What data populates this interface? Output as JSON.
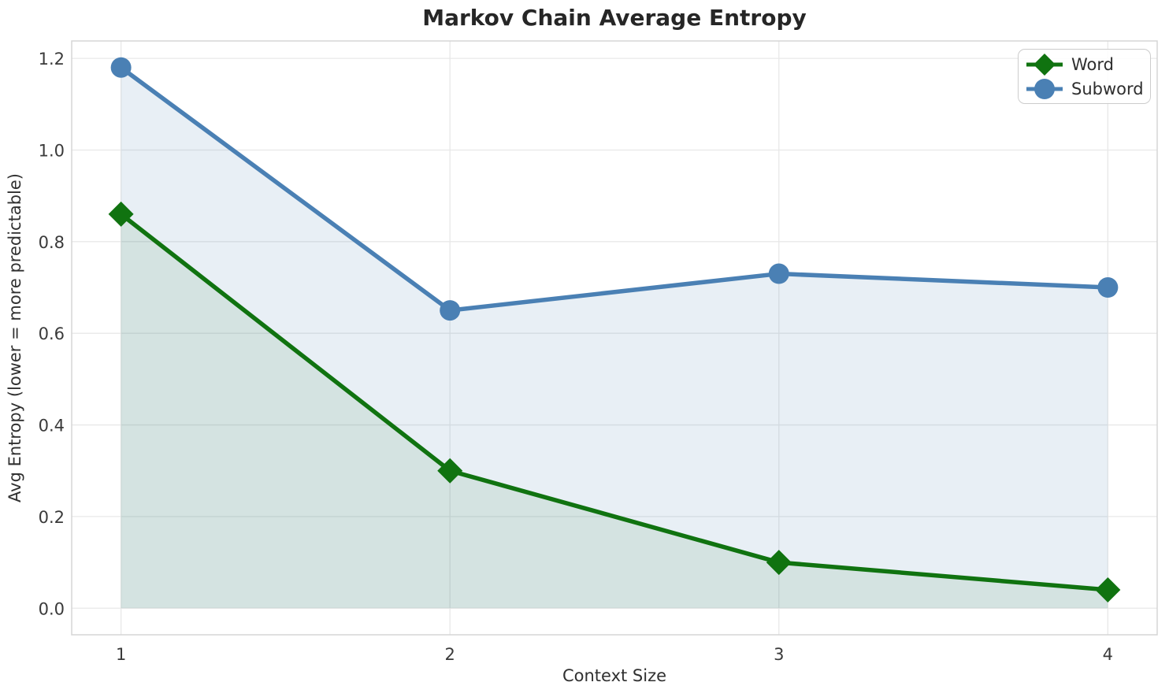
{
  "chart_data": {
    "type": "line",
    "title": "Markov Chain Average Entropy",
    "xlabel": "Context Size",
    "ylabel": "Avg Entropy (lower = more predictable)",
    "x": [
      1,
      2,
      3,
      4
    ],
    "series": [
      {
        "name": "Word",
        "marker": "diamond",
        "color": "#107310",
        "fill_alpha": 0.09,
        "values": [
          0.86,
          0.3,
          0.1,
          0.04
        ]
      },
      {
        "name": "Subword",
        "marker": "circle",
        "color": "#4a80b4",
        "fill_alpha": 0.13,
        "values": [
          1.18,
          0.65,
          0.73,
          0.7
        ]
      }
    ],
    "xticks": {
      "values": [
        1,
        2,
        3,
        4
      ],
      "labels": [
        "1",
        "2",
        "3",
        "4"
      ]
    },
    "yticks": {
      "values": [
        0.0,
        0.2,
        0.4,
        0.6,
        0.8,
        1.0,
        1.2
      ],
      "labels": [
        "0.0",
        "0.2",
        "0.4",
        "0.6",
        "0.8",
        "1.0",
        "1.2"
      ]
    },
    "xlim": [
      0.85,
      4.15
    ],
    "ylim": [
      -0.058,
      1.238
    ],
    "grid": true,
    "area_fill": true,
    "area_fill_baseline": 0,
    "legend_position": "upper right"
  },
  "style": {
    "grid_color": "#e8e8e8",
    "spine_color": "#d5d5d5",
    "tick_text_color": "#3a3a3a",
    "label_text_color": "#303030",
    "title_text_color": "#262626",
    "legend_text_color": "#2e2e2e",
    "legend_border_color": "#cccccc",
    "background_color": "#ffffff"
  }
}
